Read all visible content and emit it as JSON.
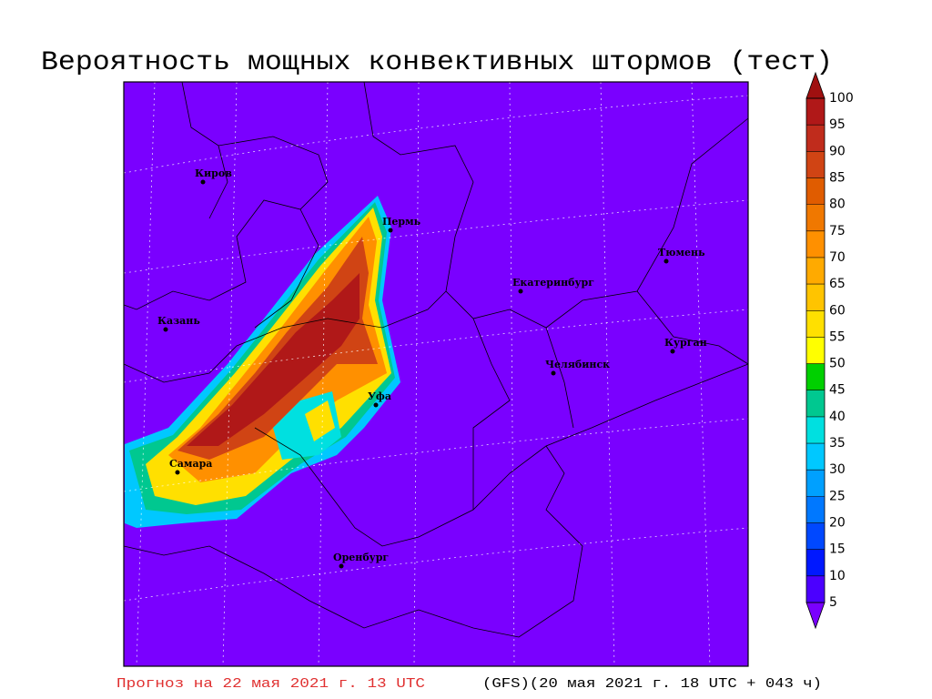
{
  "title": "Вероятность мощных конвективных штормов (тест)",
  "cities": [
    "Киров",
    "Пермь",
    "Казань",
    "Екатеринбург",
    "Тюмень",
    "Курган",
    "Челябинск",
    "Уфа",
    "Самара",
    "Оренбург"
  ],
  "colorbar": {
    "levels": [
      5,
      10,
      15,
      20,
      25,
      30,
      35,
      40,
      45,
      50,
      55,
      60,
      65,
      70,
      75,
      80,
      85,
      90,
      95,
      100
    ],
    "colors": [
      "#7a00ff",
      "#4b00ff",
      "#0018ff",
      "#0048ff",
      "#0078ff",
      "#00a0ff",
      "#00c8ff",
      "#00e0e0",
      "#00c890",
      "#00d000",
      "#ffff00",
      "#ffe000",
      "#ffc400",
      "#ffaa00",
      "#ff9000",
      "#f07800",
      "#e05c00",
      "#d04414",
      "#c02c1c",
      "#b01818",
      "#a01010"
    ]
  },
  "footer": {
    "forecast": "Прогноз на 22 мая 2021 г. 13 UTC",
    "run": "(GFS)(20 мая 2021 г. 18 UTC + 043 ч)"
  }
}
